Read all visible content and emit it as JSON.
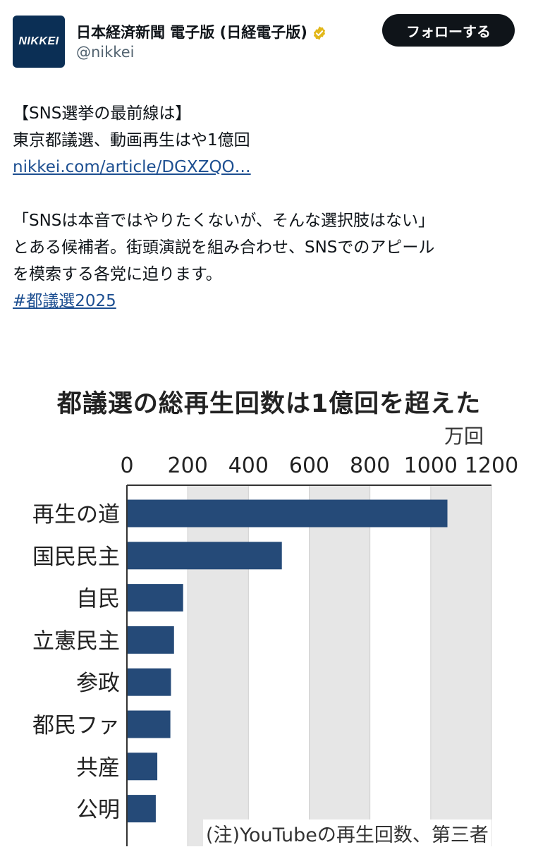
{
  "account": {
    "logo_text": "NIKKEI",
    "name": "日本経済新聞 電子版 (日経電子版)",
    "handle": "@nikkei",
    "verified_badge_icon": "verified-badge-icon",
    "verified_color": "#e2b719",
    "follow_label": "フォローする"
  },
  "tweet": {
    "line1": "【SNS選挙の最前線は】",
    "line2": "東京都議選、動画再生はや1億回",
    "link_text": "nikkei.com/article/DGXZQO…",
    "para2_line1": "「SNSは本音ではやりたくないが、そんな選択肢はない」",
    "para2_line2": "とある候補者。街頭演説を組み合わせ、SNSでのアピール",
    "para2_line3": "を模索する各党に迫ります。",
    "hashtag": "#都議選2025"
  },
  "chart_data": {
    "type": "bar",
    "orientation": "horizontal",
    "title": "都議選の総再生回数は1億回を超えた",
    "unit_label": "万回",
    "xlim": [
      0,
      1200
    ],
    "ticks": [
      "0",
      "200",
      "400",
      "600",
      "800",
      "1000",
      "1200"
    ],
    "categories": [
      "再生の道",
      "国民民主",
      "自民",
      "立憲民主",
      "参政",
      "都民ファ",
      "共産",
      "公明"
    ],
    "values": [
      1055,
      510,
      185,
      155,
      145,
      143,
      100,
      95
    ],
    "bar_color": "#254a78",
    "band_color": "#e6e6e6",
    "note": "(注)YouTubeの再生回数、第三者"
  }
}
